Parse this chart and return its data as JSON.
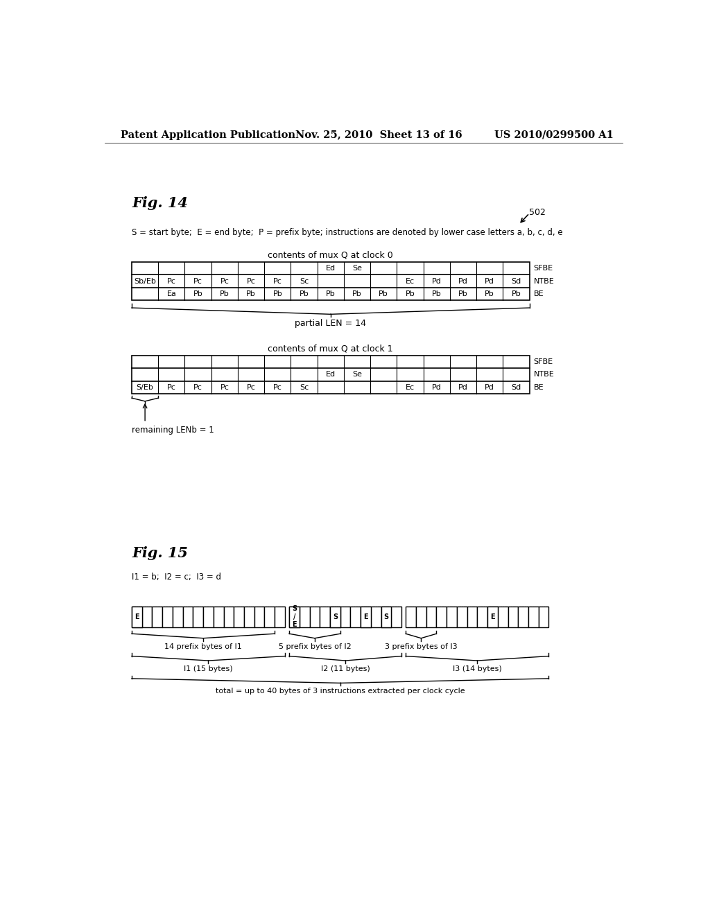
{
  "header_left": "Patent Application Publication",
  "header_mid": "Nov. 25, 2010  Sheet 13 of 16",
  "header_right": "US 2010/0299500 A1",
  "fig14_label": "Fig. 14",
  "fig14_ref": "502",
  "legend_text": "S = start byte;  E = end byte;  P = prefix byte; instructions are denoted by lower case letters a, b, c, d, e",
  "clock0_title": "contents of mux Q at clock 0",
  "clock1_title": "contents of mux Q at clock 1",
  "clock0_partial_len": "partial LEN = 14",
  "clock1_remaining": "remaining LENb = 1",
  "fig15_label": "Fig. 15",
  "fig15_legend": "I1 = b;  I2 = c;  I3 = d",
  "clock0_rows": [
    [
      "",
      "",
      "",
      "",
      "",
      "",
      "",
      "Ed",
      "Se",
      "",
      "",
      "",
      "",
      "",
      "",
      "SFBE"
    ],
    [
      "Sb/Eb",
      "Pc",
      "Pc",
      "Pc",
      "Pc",
      "Pc",
      "Sc",
      "",
      "",
      "",
      "Ec",
      "Pd",
      "Pd",
      "Pd",
      "Sd",
      "NTBE"
    ],
    [
      "",
      "Ea",
      "Pb",
      "Pb",
      "Pb",
      "Pb",
      "Pb",
      "Pb",
      "Pb",
      "Pb",
      "Pb",
      "Pb",
      "Pb",
      "Pb",
      "Pb",
      "BE"
    ]
  ],
  "clock1_rows": [
    [
      "",
      "",
      "",
      "",
      "",
      "",
      "",
      "",
      "",
      "",
      "",
      "",
      "",
      "",
      "",
      "SFBE"
    ],
    [
      "",
      "",
      "",
      "",
      "",
      "",
      "",
      "Ed",
      "Se",
      "",
      "",
      "",
      "",
      "",
      "",
      "NTBE"
    ],
    [
      "S/Eb",
      "Pc",
      "Pc",
      "Pc",
      "Pc",
      "Pc",
      "Sc",
      "",
      "",
      "",
      "Ec",
      "Pd",
      "Pd",
      "Pd",
      "Sd",
      "BE"
    ]
  ],
  "fig15_brace3_label": "total = up to 40 bytes of 3 instructions extracted per clock cycle",
  "bg_color": "#ffffff"
}
